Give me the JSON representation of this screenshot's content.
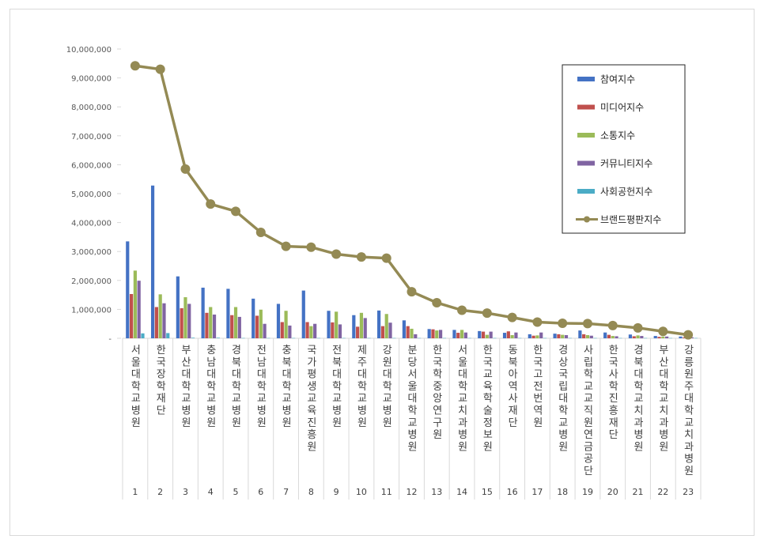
{
  "chart_data": {
    "type": "bar",
    "title": "",
    "xlabel": "",
    "ylabel": "",
    "ylim": [
      0,
      10000000
    ],
    "ytick_step": 1000000,
    "grid": false,
    "legend_position": "top-right",
    "ranks": [
      "1",
      "2",
      "3",
      "4",
      "5",
      "6",
      "7",
      "8",
      "9",
      "10",
      "11",
      "12",
      "13",
      "14",
      "15",
      "16",
      "17",
      "18",
      "19",
      "20",
      "21",
      "22",
      "23"
    ],
    "categories": [
      "서울대학교병원",
      "한국장학재단",
      "부산대학교병원",
      "충남대학교병원",
      "경북대학교병원",
      "전남대학교병원",
      "충북대학교병원",
      "국가평생교육진흥원",
      "전북대학교병원",
      "제주대학교병원",
      "강원대학교병원",
      "분당서울대학교병원",
      "한국학중앙연구원",
      "서울대학교치과병원",
      "한국교육학술정보원",
      "동북아역사재단",
      "한국고전번역원",
      "경상국립대학교병원",
      "사립학교교직원연금공단",
      "한국사학진흥재단",
      "경북대학교치과병원",
      "부산대학교치과병원",
      "강릉원주대학교치과병원"
    ],
    "series": [
      {
        "name": "참여지수",
        "type": "bar",
        "color": "#4472c4",
        "values": [
          3350000,
          5280000,
          2140000,
          1750000,
          1710000,
          1370000,
          1190000,
          1650000,
          950000,
          800000,
          960000,
          620000,
          320000,
          290000,
          250000,
          190000,
          140000,
          160000,
          270000,
          200000,
          130000,
          80000,
          60000
        ]
      },
      {
        "name": "미디어지수",
        "type": "bar",
        "color": "#c0504d",
        "values": [
          1530000,
          1080000,
          1040000,
          880000,
          800000,
          780000,
          560000,
          560000,
          550000,
          400000,
          420000,
          420000,
          310000,
          190000,
          230000,
          240000,
          90000,
          140000,
          140000,
          120000,
          70000,
          50000,
          30000
        ]
      },
      {
        "name": "소통지수",
        "type": "bar",
        "color": "#9bbb59",
        "values": [
          2340000,
          1520000,
          1420000,
          1080000,
          1080000,
          990000,
          950000,
          420000,
          920000,
          880000,
          840000,
          330000,
          270000,
          290000,
          120000,
          110000,
          100000,
          120000,
          110000,
          80000,
          100000,
          60000,
          40000
        ]
      },
      {
        "name": "커뮤니티지수",
        "type": "bar",
        "color": "#8064a2",
        "values": [
          1990000,
          1210000,
          1190000,
          820000,
          740000,
          500000,
          440000,
          500000,
          480000,
          700000,
          540000,
          140000,
          290000,
          200000,
          230000,
          200000,
          200000,
          110000,
          90000,
          70000,
          80000,
          60000,
          30000
        ]
      },
      {
        "name": "사회공헌지수",
        "type": "bar",
        "color": "#4bacc6",
        "values": [
          170000,
          180000,
          20000,
          20000,
          10000,
          10000,
          10000,
          10000,
          10000,
          10000,
          10000,
          10000,
          10000,
          10000,
          10000,
          10000,
          10000,
          10000,
          10000,
          10000,
          10000,
          10000,
          10000
        ]
      },
      {
        "name": "브랜드평판지수",
        "type": "line",
        "color": "#948a54",
        "values": [
          9420000,
          9300000,
          5850000,
          4640000,
          4390000,
          3660000,
          3180000,
          3150000,
          2910000,
          2810000,
          2770000,
          1610000,
          1230000,
          970000,
          870000,
          720000,
          560000,
          520000,
          510000,
          440000,
          360000,
          240000,
          120000
        ]
      }
    ]
  }
}
